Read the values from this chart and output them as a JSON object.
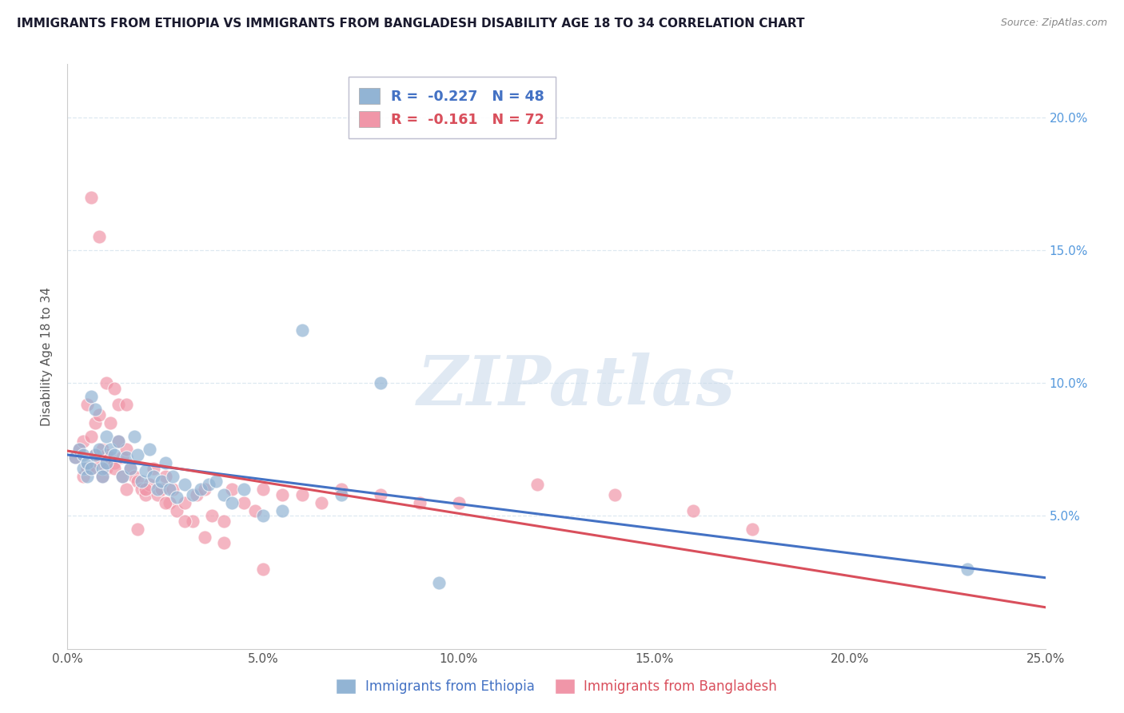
{
  "title": "IMMIGRANTS FROM ETHIOPIA VS IMMIGRANTS FROM BANGLADESH DISABILITY AGE 18 TO 34 CORRELATION CHART",
  "source": "Source: ZipAtlas.com",
  "ylabel": "Disability Age 18 to 34",
  "xlim": [
    0.0,
    0.25
  ],
  "ylim": [
    0.0,
    0.22
  ],
  "xticks": [
    0.0,
    0.05,
    0.1,
    0.15,
    0.2,
    0.25
  ],
  "yticks": [
    0.05,
    0.1,
    0.15,
    0.2
  ],
  "xtick_labels": [
    "0.0%",
    "5.0%",
    "10.0%",
    "15.0%",
    "20.0%",
    "25.0%"
  ],
  "ytick_labels": [
    "5.0%",
    "10.0%",
    "15.0%",
    "20.0%"
  ],
  "ethiopia_color": "#92b4d4",
  "bangladesh_color": "#f096a8",
  "ethiopia_line_color": "#4472c4",
  "bangladesh_line_color": "#d94f5c",
  "ethiopia_R": -0.227,
  "ethiopia_N": 48,
  "bangladesh_R": -0.161,
  "bangladesh_N": 72,
  "ethiopia_scatter_x": [
    0.002,
    0.003,
    0.004,
    0.004,
    0.005,
    0.005,
    0.006,
    0.006,
    0.007,
    0.007,
    0.008,
    0.009,
    0.009,
    0.01,
    0.01,
    0.011,
    0.012,
    0.013,
    0.014,
    0.015,
    0.016,
    0.017,
    0.018,
    0.019,
    0.02,
    0.021,
    0.022,
    0.023,
    0.024,
    0.025,
    0.026,
    0.027,
    0.028,
    0.03,
    0.032,
    0.034,
    0.036,
    0.038,
    0.04,
    0.042,
    0.045,
    0.05,
    0.055,
    0.06,
    0.07,
    0.08,
    0.23,
    0.095
  ],
  "ethiopia_scatter_y": [
    0.072,
    0.075,
    0.068,
    0.073,
    0.065,
    0.07,
    0.095,
    0.068,
    0.09,
    0.073,
    0.075,
    0.068,
    0.065,
    0.08,
    0.07,
    0.075,
    0.073,
    0.078,
    0.065,
    0.072,
    0.068,
    0.08,
    0.073,
    0.063,
    0.067,
    0.075,
    0.065,
    0.06,
    0.063,
    0.07,
    0.06,
    0.065,
    0.057,
    0.062,
    0.058,
    0.06,
    0.062,
    0.063,
    0.058,
    0.055,
    0.06,
    0.05,
    0.052,
    0.12,
    0.058,
    0.1,
    0.03,
    0.025
  ],
  "bangladesh_scatter_x": [
    0.002,
    0.003,
    0.004,
    0.004,
    0.005,
    0.005,
    0.006,
    0.006,
    0.007,
    0.007,
    0.008,
    0.008,
    0.009,
    0.009,
    0.01,
    0.01,
    0.011,
    0.011,
    0.012,
    0.012,
    0.013,
    0.013,
    0.014,
    0.014,
    0.015,
    0.015,
    0.016,
    0.017,
    0.018,
    0.019,
    0.02,
    0.021,
    0.022,
    0.023,
    0.024,
    0.025,
    0.026,
    0.027,
    0.028,
    0.03,
    0.032,
    0.033,
    0.035,
    0.037,
    0.04,
    0.042,
    0.045,
    0.048,
    0.05,
    0.055,
    0.06,
    0.065,
    0.07,
    0.08,
    0.09,
    0.1,
    0.12,
    0.14,
    0.16,
    0.175,
    0.006,
    0.008,
    0.01,
    0.012,
    0.015,
    0.018,
    0.02,
    0.025,
    0.03,
    0.035,
    0.04,
    0.05
  ],
  "bangladesh_scatter_y": [
    0.072,
    0.075,
    0.078,
    0.065,
    0.092,
    0.068,
    0.08,
    0.068,
    0.085,
    0.073,
    0.088,
    0.07,
    0.075,
    0.065,
    0.073,
    0.068,
    0.085,
    0.072,
    0.07,
    0.068,
    0.092,
    0.078,
    0.065,
    0.072,
    0.075,
    0.06,
    0.068,
    0.065,
    0.063,
    0.06,
    0.058,
    0.062,
    0.068,
    0.058,
    0.06,
    0.065,
    0.055,
    0.06,
    0.052,
    0.055,
    0.048,
    0.058,
    0.06,
    0.05,
    0.048,
    0.06,
    0.055,
    0.052,
    0.06,
    0.058,
    0.058,
    0.055,
    0.06,
    0.058,
    0.055,
    0.055,
    0.062,
    0.058,
    0.052,
    0.045,
    0.17,
    0.155,
    0.1,
    0.098,
    0.092,
    0.045,
    0.06,
    0.055,
    0.048,
    0.042,
    0.04,
    0.03
  ],
  "watermark_text": "ZIPatlas",
  "background_color": "#ffffff",
  "grid_color": "#dde8f0",
  "title_color": "#1a1a2e",
  "axis_label_color": "#555555",
  "right_axis_color": "#5599dd",
  "legend_text_color_1": "#4472c4",
  "legend_text_color_2": "#d94f5c",
  "bottom_legend_ethiopia_color": "#4472c4",
  "bottom_legend_bangladesh_color": "#d94f5c"
}
